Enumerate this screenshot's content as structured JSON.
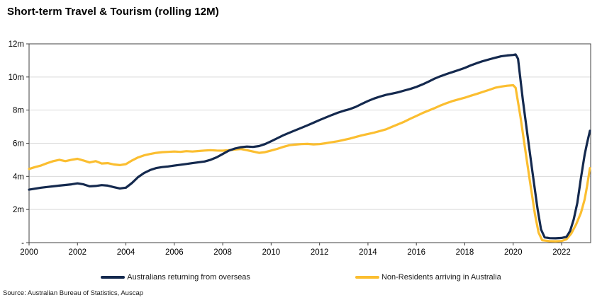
{
  "title": "Short-term Travel & Tourism (rolling 12M)",
  "source": "Source: Australian Bureau of Statistics, Auscap",
  "legend": [
    {
      "label": "Australians returning from overseas",
      "color": "#14294E"
    },
    {
      "label": "Non-Residents arriving in Australia",
      "color": "#FBBE30"
    }
  ],
  "colors": {
    "navy": "#14294E",
    "amber": "#FBBE30",
    "gridline": "#D9D9D9",
    "plot_border": "#404040",
    "text": "#000000"
  },
  "chart_data": {
    "type": "line",
    "title": "Short-term Travel & Tourism (rolling 12M)",
    "xlabel": "",
    "ylabel": "",
    "unit": "millions of movements (rolling 12-month total)",
    "xlim": [
      2000,
      2023.2
    ],
    "ylim": [
      0,
      12
    ],
    "grid": "horizontal",
    "legend_position": "bottom",
    "x_ticks": {
      "values": [
        2000,
        2002,
        2004,
        2006,
        2008,
        2010,
        2012,
        2014,
        2016,
        2018,
        2020,
        2022
      ],
      "labels": [
        "2000",
        "2002",
        "2004",
        "2006",
        "2008",
        "2010",
        "2012",
        "2014",
        "2016",
        "2018",
        "2020",
        "2022"
      ]
    },
    "y_ticks": {
      "values": [
        0,
        2,
        4,
        6,
        8,
        10,
        12
      ],
      "labels": [
        "-",
        "2m",
        "4m",
        "6m",
        "8m",
        "10m",
        "12m"
      ]
    },
    "series": [
      {
        "name": "Non-Residents arriving in Australia",
        "color": "#FBBE30",
        "points": [
          [
            2000.0,
            4.45
          ],
          [
            2000.25,
            4.56
          ],
          [
            2000.5,
            4.66
          ],
          [
            2000.75,
            4.8
          ],
          [
            2001.0,
            4.92
          ],
          [
            2001.25,
            5.0
          ],
          [
            2001.5,
            4.92
          ],
          [
            2001.75,
            5.0
          ],
          [
            2002.0,
            5.06
          ],
          [
            2002.25,
            4.96
          ],
          [
            2002.5,
            4.84
          ],
          [
            2002.75,
            4.92
          ],
          [
            2003.0,
            4.78
          ],
          [
            2003.25,
            4.8
          ],
          [
            2003.5,
            4.72
          ],
          [
            2003.75,
            4.68
          ],
          [
            2004.0,
            4.74
          ],
          [
            2004.25,
            4.96
          ],
          [
            2004.5,
            5.14
          ],
          [
            2004.75,
            5.27
          ],
          [
            2005.0,
            5.35
          ],
          [
            2005.25,
            5.42
          ],
          [
            2005.5,
            5.46
          ],
          [
            2005.75,
            5.48
          ],
          [
            2006.0,
            5.5
          ],
          [
            2006.25,
            5.48
          ],
          [
            2006.5,
            5.52
          ],
          [
            2006.75,
            5.5
          ],
          [
            2007.0,
            5.53
          ],
          [
            2007.25,
            5.56
          ],
          [
            2007.5,
            5.58
          ],
          [
            2007.75,
            5.56
          ],
          [
            2008.0,
            5.55
          ],
          [
            2008.25,
            5.58
          ],
          [
            2008.5,
            5.62
          ],
          [
            2008.75,
            5.65
          ],
          [
            2009.0,
            5.58
          ],
          [
            2009.25,
            5.5
          ],
          [
            2009.5,
            5.42
          ],
          [
            2009.75,
            5.46
          ],
          [
            2010.0,
            5.56
          ],
          [
            2010.25,
            5.66
          ],
          [
            2010.5,
            5.78
          ],
          [
            2010.75,
            5.88
          ],
          [
            2011.0,
            5.92
          ],
          [
            2011.25,
            5.95
          ],
          [
            2011.5,
            5.96
          ],
          [
            2011.75,
            5.93
          ],
          [
            2012.0,
            5.95
          ],
          [
            2012.25,
            6.0
          ],
          [
            2012.5,
            6.06
          ],
          [
            2012.75,
            6.12
          ],
          [
            2013.0,
            6.2
          ],
          [
            2013.25,
            6.28
          ],
          [
            2013.5,
            6.38
          ],
          [
            2013.75,
            6.48
          ],
          [
            2014.0,
            6.56
          ],
          [
            2014.25,
            6.64
          ],
          [
            2014.5,
            6.74
          ],
          [
            2014.75,
            6.84
          ],
          [
            2015.0,
            7.0
          ],
          [
            2015.25,
            7.15
          ],
          [
            2015.5,
            7.3
          ],
          [
            2015.75,
            7.48
          ],
          [
            2016.0,
            7.65
          ],
          [
            2016.25,
            7.82
          ],
          [
            2016.5,
            7.97
          ],
          [
            2016.75,
            8.12
          ],
          [
            2017.0,
            8.28
          ],
          [
            2017.25,
            8.42
          ],
          [
            2017.5,
            8.55
          ],
          [
            2017.75,
            8.65
          ],
          [
            2018.0,
            8.75
          ],
          [
            2018.25,
            8.87
          ],
          [
            2018.5,
            8.98
          ],
          [
            2018.75,
            9.1
          ],
          [
            2019.0,
            9.22
          ],
          [
            2019.25,
            9.35
          ],
          [
            2019.5,
            9.42
          ],
          [
            2019.75,
            9.47
          ],
          [
            2020.0,
            9.5
          ],
          [
            2020.1,
            9.35
          ],
          [
            2020.3,
            7.6
          ],
          [
            2020.5,
            5.6
          ],
          [
            2020.7,
            3.6
          ],
          [
            2020.9,
            1.7
          ],
          [
            2021.05,
            0.6
          ],
          [
            2021.2,
            0.14
          ],
          [
            2021.5,
            0.09
          ],
          [
            2021.75,
            0.08
          ],
          [
            2022.0,
            0.1
          ],
          [
            2022.2,
            0.2
          ],
          [
            2022.4,
            0.55
          ],
          [
            2022.6,
            1.1
          ],
          [
            2022.8,
            1.8
          ],
          [
            2022.95,
            2.6
          ],
          [
            2023.05,
            3.4
          ],
          [
            2023.17,
            4.5
          ]
        ]
      },
      {
        "name": "Australians returning from overseas",
        "color": "#14294E",
        "points": [
          [
            2000.0,
            3.2
          ],
          [
            2000.25,
            3.26
          ],
          [
            2000.5,
            3.32
          ],
          [
            2000.75,
            3.36
          ],
          [
            2001.0,
            3.4
          ],
          [
            2001.25,
            3.44
          ],
          [
            2001.5,
            3.48
          ],
          [
            2001.75,
            3.52
          ],
          [
            2002.0,
            3.58
          ],
          [
            2002.25,
            3.52
          ],
          [
            2002.5,
            3.4
          ],
          [
            2002.75,
            3.42
          ],
          [
            2003.0,
            3.47
          ],
          [
            2003.25,
            3.44
          ],
          [
            2003.5,
            3.35
          ],
          [
            2003.75,
            3.27
          ],
          [
            2004.0,
            3.32
          ],
          [
            2004.25,
            3.6
          ],
          [
            2004.5,
            3.95
          ],
          [
            2004.75,
            4.2
          ],
          [
            2005.0,
            4.38
          ],
          [
            2005.25,
            4.5
          ],
          [
            2005.5,
            4.56
          ],
          [
            2005.75,
            4.6
          ],
          [
            2006.0,
            4.65
          ],
          [
            2006.25,
            4.7
          ],
          [
            2006.5,
            4.75
          ],
          [
            2006.75,
            4.8
          ],
          [
            2007.0,
            4.85
          ],
          [
            2007.25,
            4.9
          ],
          [
            2007.5,
            5.0
          ],
          [
            2007.75,
            5.15
          ],
          [
            2008.0,
            5.35
          ],
          [
            2008.25,
            5.55
          ],
          [
            2008.5,
            5.68
          ],
          [
            2008.75,
            5.76
          ],
          [
            2009.0,
            5.8
          ],
          [
            2009.25,
            5.78
          ],
          [
            2009.5,
            5.83
          ],
          [
            2009.75,
            5.95
          ],
          [
            2010.0,
            6.12
          ],
          [
            2010.25,
            6.3
          ],
          [
            2010.5,
            6.48
          ],
          [
            2010.75,
            6.63
          ],
          [
            2011.0,
            6.78
          ],
          [
            2011.25,
            6.93
          ],
          [
            2011.5,
            7.08
          ],
          [
            2011.75,
            7.24
          ],
          [
            2012.0,
            7.4
          ],
          [
            2012.25,
            7.55
          ],
          [
            2012.5,
            7.7
          ],
          [
            2012.75,
            7.84
          ],
          [
            2013.0,
            7.96
          ],
          [
            2013.25,
            8.06
          ],
          [
            2013.5,
            8.2
          ],
          [
            2013.75,
            8.38
          ],
          [
            2014.0,
            8.55
          ],
          [
            2014.25,
            8.7
          ],
          [
            2014.5,
            8.82
          ],
          [
            2014.75,
            8.92
          ],
          [
            2015.0,
            9.0
          ],
          [
            2015.25,
            9.08
          ],
          [
            2015.5,
            9.18
          ],
          [
            2015.75,
            9.28
          ],
          [
            2016.0,
            9.4
          ],
          [
            2016.25,
            9.55
          ],
          [
            2016.5,
            9.72
          ],
          [
            2016.75,
            9.9
          ],
          [
            2017.0,
            10.05
          ],
          [
            2017.25,
            10.18
          ],
          [
            2017.5,
            10.3
          ],
          [
            2017.75,
            10.42
          ],
          [
            2018.0,
            10.55
          ],
          [
            2018.25,
            10.7
          ],
          [
            2018.5,
            10.84
          ],
          [
            2018.75,
            10.96
          ],
          [
            2019.0,
            11.06
          ],
          [
            2019.25,
            11.16
          ],
          [
            2019.5,
            11.25
          ],
          [
            2019.75,
            11.3
          ],
          [
            2020.0,
            11.33
          ],
          [
            2020.1,
            11.36
          ],
          [
            2020.2,
            11.1
          ],
          [
            2020.4,
            8.6
          ],
          [
            2020.6,
            6.4
          ],
          [
            2020.8,
            4.2
          ],
          [
            2021.0,
            2.1
          ],
          [
            2021.15,
            0.8
          ],
          [
            2021.3,
            0.32
          ],
          [
            2021.5,
            0.27
          ],
          [
            2021.75,
            0.26
          ],
          [
            2022.0,
            0.28
          ],
          [
            2022.2,
            0.35
          ],
          [
            2022.35,
            0.7
          ],
          [
            2022.5,
            1.4
          ],
          [
            2022.65,
            2.4
          ],
          [
            2022.8,
            3.9
          ],
          [
            2022.95,
            5.3
          ],
          [
            2023.05,
            6.0
          ],
          [
            2023.17,
            6.75
          ]
        ]
      }
    ]
  }
}
